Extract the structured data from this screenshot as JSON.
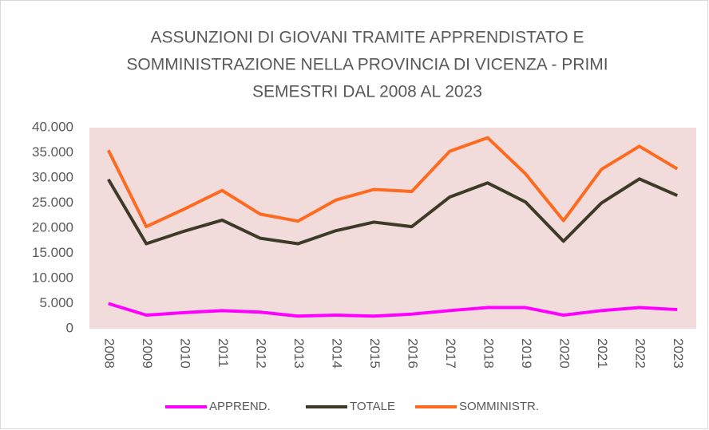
{
  "chart_data": {
    "type": "line",
    "title": [
      "ASSUNZIONI DI GIOVANI TRAMITE APPRENDISTATO E",
      "SOMMINISTRAZIONE NELLA PROVINCIA DI VICENZA - PRIMI",
      "SEMESTRI DAL 2008 AL 2023"
    ],
    "categories": [
      "2008",
      "2009",
      "2010",
      "2011",
      "2012",
      "2013",
      "2014",
      "2015",
      "2016",
      "2017",
      "2018",
      "2019",
      "2020",
      "2021",
      "2022",
      "2023"
    ],
    "series": [
      {
        "name": "APPREND.",
        "color": "#ff00ff",
        "values": [
          5000,
          2700,
          3200,
          3600,
          3300,
          2500,
          2700,
          2500,
          2900,
          3600,
          4200,
          4200,
          2700,
          3600,
          4200,
          3800
        ]
      },
      {
        "name": "TOTALE",
        "color": "#3d3a27",
        "values": [
          29700,
          16900,
          19400,
          21600,
          18000,
          16900,
          19500,
          21200,
          20300,
          26200,
          29000,
          25200,
          17400,
          25000,
          29800,
          26500
        ]
      },
      {
        "name": "SOMMINISTR.",
        "color": "#ff6a21",
        "values": [
          35500,
          20300,
          23800,
          27500,
          22800,
          21400,
          25600,
          27700,
          27300,
          35300,
          38000,
          30800,
          21500,
          31700,
          36300,
          31800
        ]
      }
    ],
    "ylim": [
      0,
      40000
    ],
    "yticks": [
      0,
      {
        "value": 5000,
        "label": "5.000"
      },
      {
        "value": 10000,
        "label": "10.000"
      },
      {
        "value": 15000,
        "label": "15.000"
      },
      {
        "value": 20000,
        "label": "20.000"
      },
      {
        "value": 25000,
        "label": "25.000"
      },
      {
        "value": 30000,
        "label": "30.000"
      },
      {
        "value": 35000,
        "label": "35.000"
      },
      {
        "value": 40000,
        "label": "40.000"
      }
    ],
    "plot_background": "#f2dcdb",
    "legend": "bottom"
  }
}
